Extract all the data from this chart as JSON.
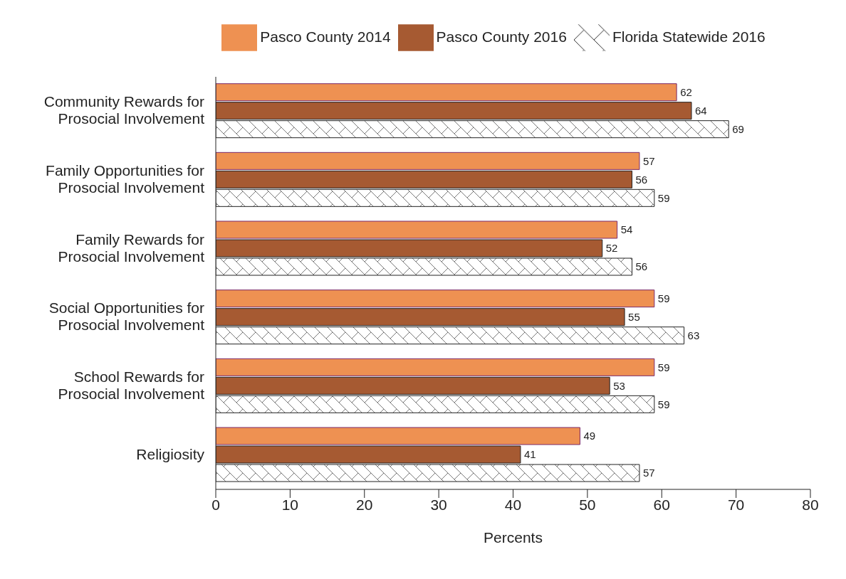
{
  "chart_data": {
    "type": "bar",
    "orientation": "horizontal",
    "xlabel": "Percents",
    "categories": [
      "Community Rewards for Prosocial Involvement",
      "Family Opportunities for Prosocial Involvement",
      "Family Rewards for Prosocial Involvement",
      "Social Opportunities for Prosocial Involvement",
      "School Rewards for Prosocial Involvement",
      "Religiosity"
    ],
    "series": [
      {
        "name": "Pasco County 2014",
        "color": "#ee9152",
        "values": [
          62,
          57,
          54,
          59,
          59,
          49
        ]
      },
      {
        "name": "Pasco County 2016",
        "color": "#a65a32",
        "values": [
          64,
          56,
          52,
          55,
          53,
          41
        ]
      },
      {
        "name": "Florida Statewide 2016",
        "color": "#222222",
        "values": [
          69,
          59,
          56,
          63,
          59,
          57
        ]
      }
    ],
    "xlim": [
      0,
      80
    ],
    "xticks": [
      0,
      10,
      20,
      30,
      40,
      50,
      60,
      70,
      80
    ],
    "data_labels": true,
    "legend": "top",
    "grid": false
  }
}
